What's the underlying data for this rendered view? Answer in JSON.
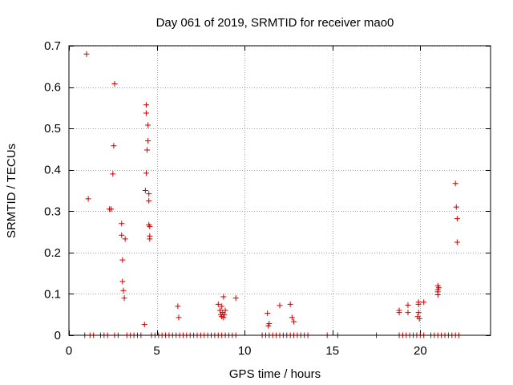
{
  "chart_data": {
    "type": "scatter",
    "title": "Day 061 of 2019, SRMTID for receiver mao0",
    "xlabel": "GPS time / hours",
    "ylabel": "SRMTID / TECUs",
    "xlim": [
      0,
      24
    ],
    "ylim": [
      0,
      0.7
    ],
    "xticks": [
      0,
      5,
      10,
      15,
      20
    ],
    "yticks": [
      0,
      0.1,
      0.2,
      0.3,
      0.4,
      0.5,
      0.6,
      0.7
    ],
    "xtick_labels": [
      "0",
      "5",
      "10",
      "15",
      "20"
    ],
    "ytick_labels": [
      "0",
      "0.1",
      "0.2",
      "0.3",
      "0.4",
      "0.5",
      "0.6",
      "0.7"
    ],
    "grid": true,
    "marker": "+",
    "color": "#cc0000",
    "series": [
      {
        "name": "SRMTID",
        "x": [
          1.0,
          1.1,
          2.4,
          2.5,
          2.55,
          2.6,
          2.3,
          3.0,
          3.0,
          3.2,
          3.05,
          3.05,
          3.1,
          3.15,
          4.4,
          4.4,
          4.5,
          4.5,
          4.45,
          4.4,
          4.35,
          4.55,
          4.55,
          4.55,
          4.6,
          4.6,
          4.6,
          4.3,
          6.2,
          6.25,
          8.5,
          8.7,
          8.8,
          8.6,
          8.75,
          8.65,
          8.7,
          8.8,
          8.9,
          8.85,
          9.5,
          11.3,
          11.4,
          11.35,
          12.0,
          12.6,
          12.7,
          12.8,
          18.8,
          18.8,
          19.3,
          19.3,
          19.9,
          19.9,
          19.9,
          19.85,
          19.95,
          20.2,
          21.0,
          21.05,
          21.0,
          21.0,
          21.0,
          22.0,
          22.05,
          22.1,
          22.1,
          0.9,
          1.2,
          1.4,
          1.8,
          2.0,
          2.2,
          2.6,
          2.8,
          3.3,
          3.5,
          3.7,
          3.9,
          4.1,
          4.7,
          4.9,
          5.1,
          5.3,
          5.5,
          5.7,
          5.9,
          6.1,
          6.3,
          6.5,
          6.7,
          6.9,
          7.1,
          7.3,
          7.5,
          7.7,
          7.9,
          8.1,
          8.3,
          8.5,
          8.7,
          8.9,
          9.1,
          9.3,
          9.5,
          11.0,
          11.2,
          11.4,
          11.6,
          11.8,
          12.0,
          12.2,
          12.4,
          12.6,
          12.8,
          13.0,
          13.2,
          13.4,
          13.6,
          14.7,
          15.3,
          17.5,
          18.8,
          19.0,
          19.2,
          19.4,
          19.6,
          19.8,
          20.0,
          20.2,
          20.6,
          20.8,
          21.0,
          21.2,
          21.4,
          21.6,
          21.8,
          22.0,
          22.2
        ],
        "y": [
          0.68,
          0.33,
          0.305,
          0.39,
          0.458,
          0.608,
          0.305,
          0.27,
          0.242,
          0.233,
          0.182,
          0.13,
          0.108,
          0.09,
          0.557,
          0.537,
          0.508,
          0.47,
          0.448,
          0.392,
          0.35,
          0.342,
          0.325,
          0.267,
          0.263,
          0.24,
          0.233,
          0.026,
          0.07,
          0.043,
          0.075,
          0.07,
          0.093,
          0.06,
          0.055,
          0.05,
          0.045,
          0.043,
          0.06,
          0.05,
          0.09,
          0.053,
          0.028,
          0.023,
          0.072,
          0.075,
          0.043,
          0.033,
          0.06,
          0.055,
          0.073,
          0.055,
          0.08,
          0.075,
          0.055,
          0.045,
          0.04,
          0.08,
          0.12,
          0.115,
          0.11,
          0.105,
          0.098,
          0.367,
          0.31,
          0.282,
          0.225,
          0,
          0,
          0,
          0,
          0,
          0,
          0,
          0,
          0,
          0,
          0,
          0,
          0,
          0,
          0,
          0,
          0,
          0,
          0,
          0,
          0,
          0,
          0,
          0,
          0,
          0,
          0,
          0,
          0,
          0,
          0,
          0,
          0,
          0,
          0,
          0,
          0,
          0,
          0,
          0,
          0,
          0,
          0,
          0,
          0,
          0,
          0,
          0,
          0,
          0,
          0,
          0,
          0,
          0,
          0,
          0,
          0,
          0,
          0,
          0,
          0,
          0,
          0,
          0,
          0,
          0,
          0,
          0,
          0,
          0,
          0,
          0
        ]
      }
    ]
  }
}
